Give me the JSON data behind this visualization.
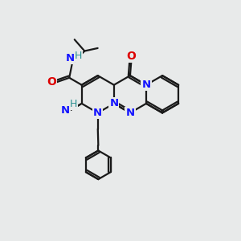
{
  "bg_color": "#e8eaea",
  "bond_color": "#1a1a1a",
  "N_color": "#1414ff",
  "O_color": "#dd0000",
  "H_color": "#2a9090",
  "bond_lw": 1.6,
  "ring_r": 0.78,
  "figsize": [
    3.0,
    3.0
  ],
  "dpi": 100,
  "xlim": [
    0,
    10
  ],
  "ylim": [
    0,
    10
  ]
}
